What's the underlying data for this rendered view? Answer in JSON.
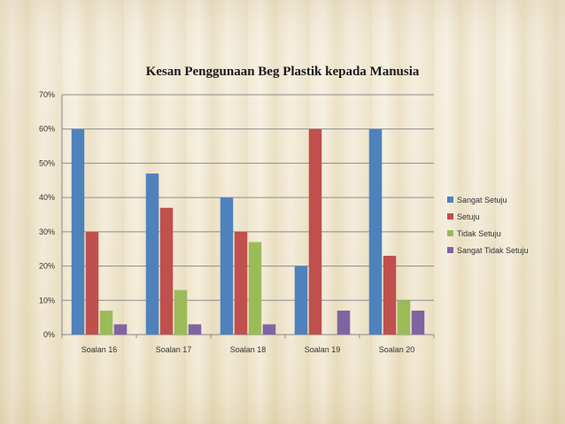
{
  "chart_data": {
    "type": "bar",
    "title": "Kesan Penggunaan Beg Plastik kepada Manusia",
    "categories": [
      "Soalan 16",
      "Soalan 17",
      "Soalan 18",
      "Soalan 19",
      "Soalan 20"
    ],
    "series": [
      {
        "name": "Sangat Setuju",
        "color": "#4f81bd",
        "values": [
          60,
          47,
          40,
          20,
          60
        ]
      },
      {
        "name": "Setuju",
        "color": "#c0504d",
        "values": [
          30,
          37,
          30,
          60,
          23
        ]
      },
      {
        "name": "Tidak Setuju",
        "color": "#9bbb59",
        "values": [
          7,
          13,
          27,
          0,
          10
        ]
      },
      {
        "name": "Sangat Tidak Setuju",
        "color": "#8064a2",
        "values": [
          3,
          3,
          3,
          7,
          7
        ]
      }
    ],
    "ylim": [
      0,
      70
    ],
    "yticks": [
      "0%",
      "10%",
      "20%",
      "30%",
      "40%",
      "50%",
      "60%",
      "70%"
    ],
    "grid": true,
    "legend_position": "right"
  }
}
